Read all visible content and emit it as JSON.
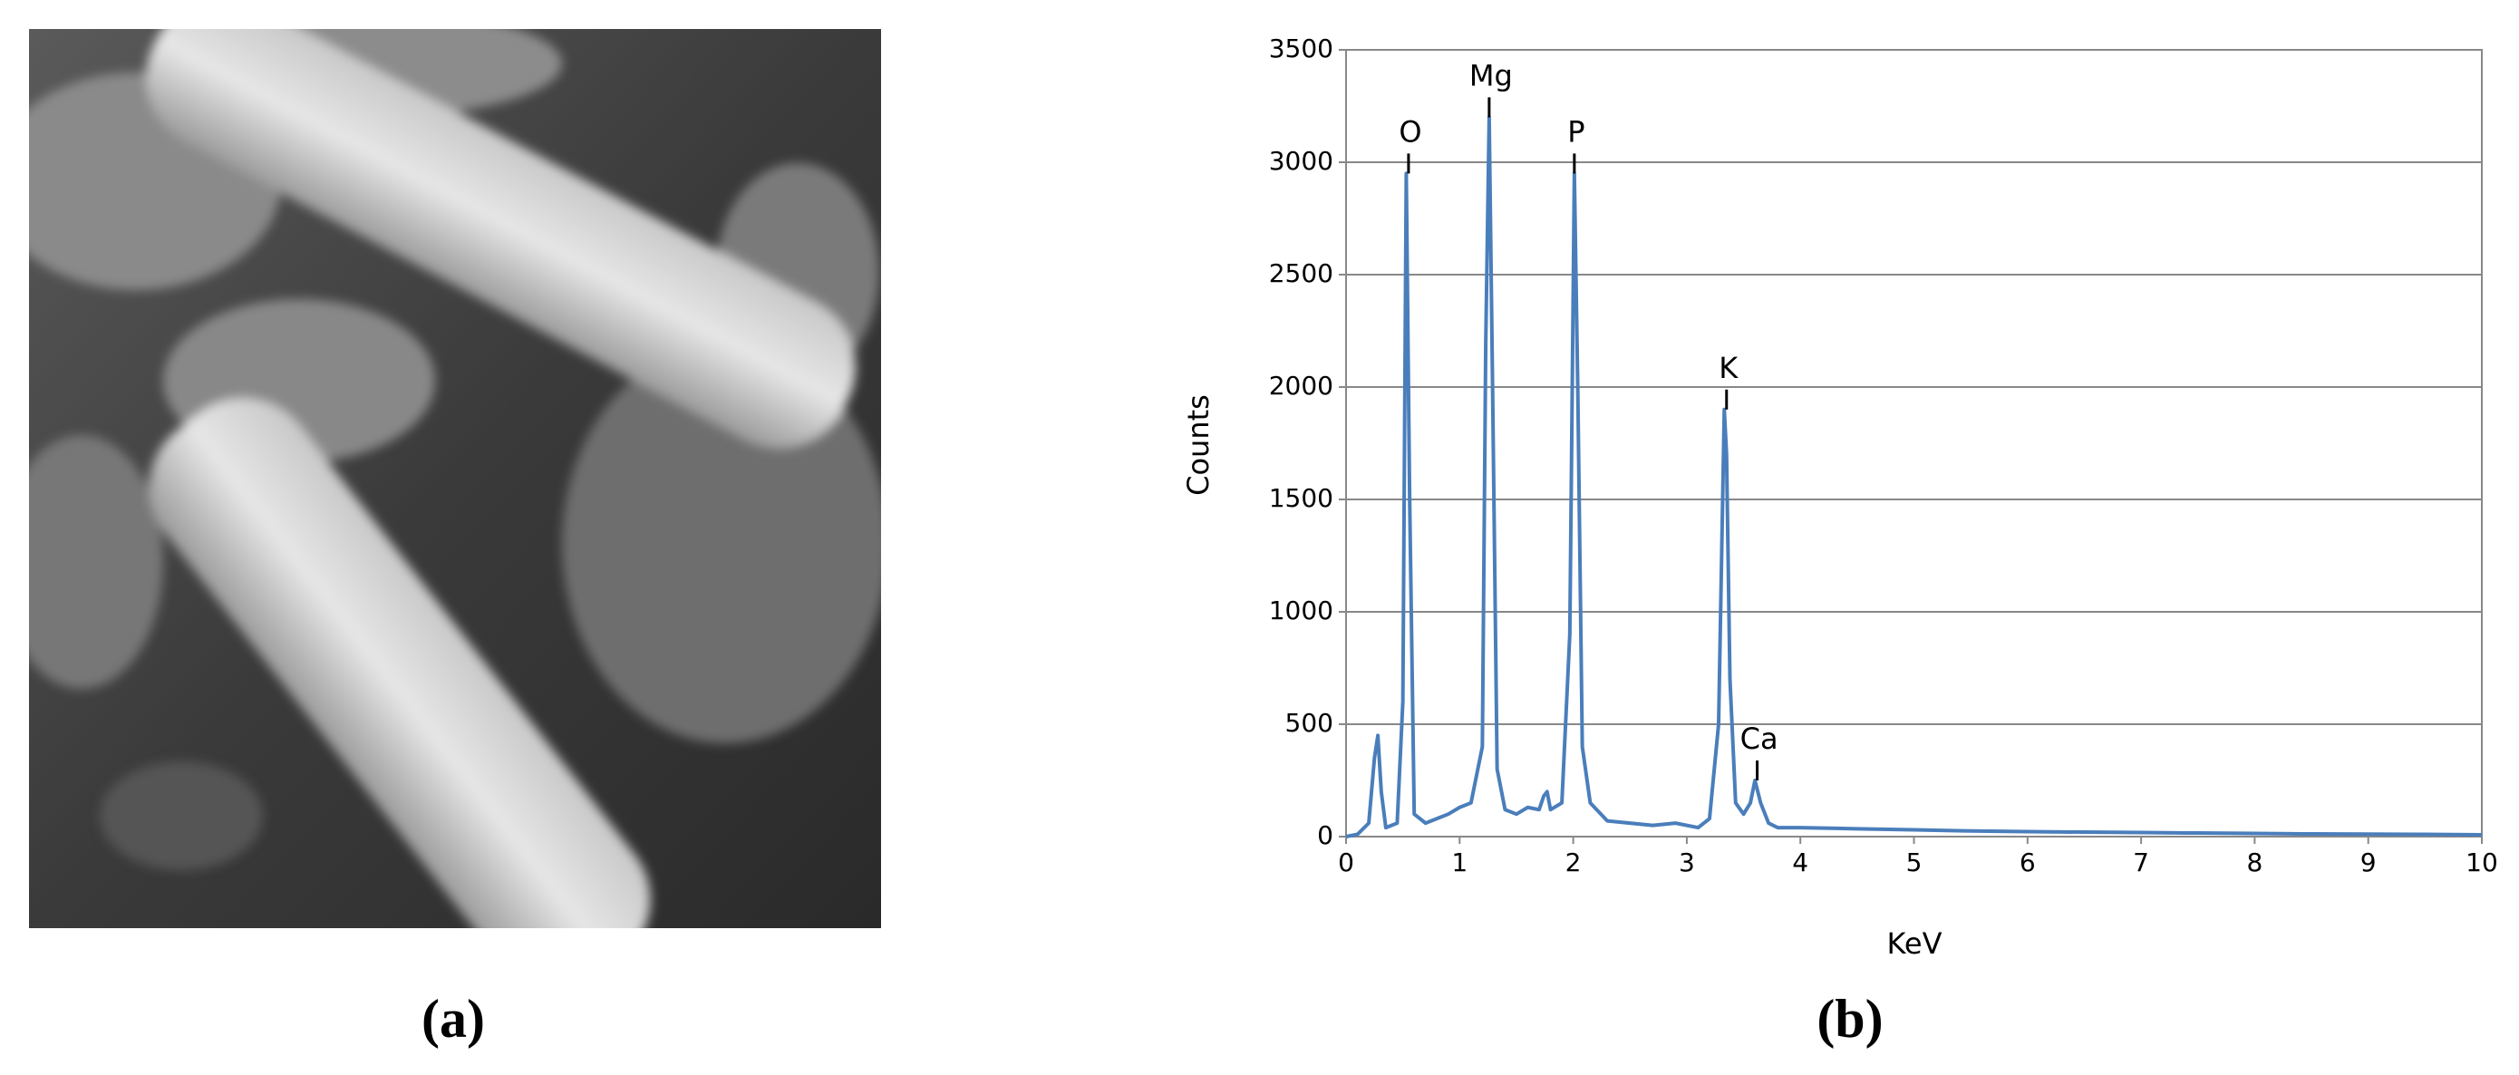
{
  "panel_labels": [
    "(a)",
    "(b)"
  ],
  "chart_data": {
    "type": "line",
    "x_label": "KeV",
    "y_label": "Counts",
    "color": "#4a7ebb",
    "grid": true,
    "xlim": [
      0,
      10
    ],
    "ylim": [
      0,
      3500
    ],
    "xticks": [
      0,
      1,
      2,
      3,
      4,
      5,
      6,
      7,
      8,
      9,
      10
    ],
    "yticks": [
      0,
      500,
      1000,
      1500,
      2000,
      2500,
      3000,
      3500
    ],
    "x": [
      0,
      0.1,
      0.2,
      0.25,
      0.28,
      0.31,
      0.35,
      0.45,
      0.5,
      0.53,
      0.56,
      0.6,
      0.7,
      0.8,
      0.9,
      1.0,
      1.1,
      1.2,
      1.23,
      1.26,
      1.29,
      1.33,
      1.4,
      1.5,
      1.6,
      1.7,
      1.74,
      1.77,
      1.8,
      1.9,
      1.97,
      2.01,
      2.04,
      2.08,
      2.15,
      2.3,
      2.5,
      2.7,
      2.9,
      3.1,
      3.2,
      3.28,
      3.33,
      3.35,
      3.38,
      3.43,
      3.5,
      3.56,
      3.6,
      3.65,
      3.72,
      3.8,
      4.0,
      4.5,
      5,
      5.5,
      6,
      6.5,
      7,
      7.5,
      8,
      8.5,
      9,
      9.5,
      10
    ],
    "values": [
      0,
      10,
      60,
      350,
      450,
      200,
      40,
      60,
      600,
      2950,
      1500,
      100,
      60,
      80,
      100,
      130,
      150,
      400,
      2200,
      3200,
      2000,
      300,
      120,
      100,
      130,
      120,
      180,
      200,
      120,
      150,
      900,
      2950,
      2000,
      400,
      150,
      70,
      60,
      50,
      60,
      40,
      80,
      500,
      1900,
      1700,
      700,
      150,
      100,
      150,
      250,
      150,
      60,
      40,
      40,
      35,
      30,
      25,
      22,
      20,
      18,
      16,
      14,
      12,
      11,
      10,
      8
    ],
    "annotations": [
      {
        "text": "O",
        "x": 0.55,
        "y": 2950
      },
      {
        "text": "Mg",
        "x": 1.26,
        "y": 3200
      },
      {
        "text": "P",
        "x": 2.01,
        "y": 2950
      },
      {
        "text": "K",
        "x": 3.35,
        "y": 1900
      },
      {
        "text": "Ca",
        "x": 3.62,
        "y": 250
      }
    ]
  }
}
